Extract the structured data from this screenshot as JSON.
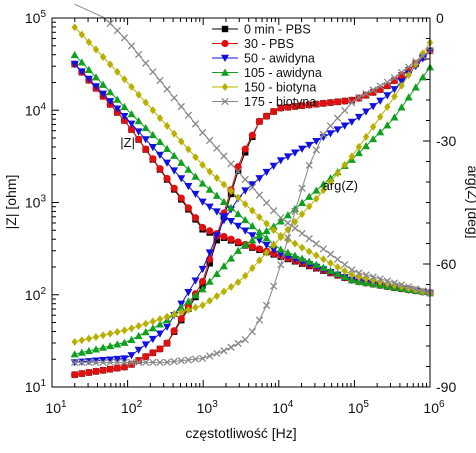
{
  "chart_data": {
    "type": "scatter",
    "xlabel": "częstotliwość [Hz]",
    "ylabel": "|Z| [ohm]",
    "y2label": "arg(Z) [deg]",
    "xscale": "log",
    "yscale": "log",
    "xlim": [
      10,
      1000000
    ],
    "ylim": [
      10,
      100000
    ],
    "y2lim": [
      -90,
      0
    ],
    "x_ticks": [
      {
        "v": 10,
        "base": "10",
        "exp": "1"
      },
      {
        "v": 100,
        "base": "10",
        "exp": "2"
      },
      {
        "v": 1000,
        "base": "10",
        "exp": "3"
      },
      {
        "v": 10000,
        "base": "10",
        "exp": "4"
      },
      {
        "v": 100000,
        "base": "10",
        "exp": "5"
      },
      {
        "v": 1000000,
        "base": "10",
        "exp": "6"
      }
    ],
    "y_ticks": [
      {
        "v": 10,
        "base": "10",
        "exp": "1"
      },
      {
        "v": 100,
        "base": "10",
        "exp": "2"
      },
      {
        "v": 1000,
        "base": "10",
        "exp": "3"
      },
      {
        "v": 10000,
        "base": "10",
        "exp": "4"
      },
      {
        "v": 100000,
        "base": "10",
        "exp": "5"
      }
    ],
    "y2_ticks": [
      "0",
      "-30",
      "-60",
      "-90"
    ],
    "annotations": [
      {
        "text": "|Z|",
        "x": 80,
        "y": 4000
      },
      {
        "text": "arg(Z)",
        "x": 38000,
        "y": -42
      }
    ],
    "legend": "top-center",
    "grid": false,
    "series": [
      {
        "name": "0 min - PBS",
        "color": "#000000",
        "marker": "square",
        "mag": {
          "logx": [
            1.3,
            2.0,
            3.0,
            3.5,
            4.0,
            5.0,
            5.5,
            6.0
          ],
          "logy": [
            4.5,
            3.85,
            2.7,
            2.55,
            2.42,
            2.15,
            2.08,
            2.02
          ]
        },
        "phase": {
          "logx": [
            1.3,
            2.0,
            2.5,
            3.0,
            3.25,
            3.5,
            3.75,
            4.0,
            4.5,
            5.0,
            5.4,
            5.7,
            6.0
          ],
          "deg": [
            -87,
            -85,
            -80,
            -65,
            -50,
            -35,
            -25,
            -22,
            -21,
            -20,
            -17,
            -13,
            -8
          ]
        }
      },
      {
        "name": "30 - PBS",
        "color": "#e01010",
        "marker": "circle",
        "mag": {
          "logx": [
            1.3,
            2.0,
            3.0,
            3.5,
            4.0,
            5.0,
            5.5,
            6.0
          ],
          "logy": [
            4.5,
            3.85,
            2.72,
            2.56,
            2.43,
            2.15,
            2.08,
            2.02
          ]
        },
        "phase": {
          "logx": [
            1.3,
            2.0,
            2.5,
            3.0,
            3.25,
            3.5,
            3.75,
            4.0,
            4.5,
            5.0,
            5.4,
            5.7,
            6.0
          ],
          "deg": [
            -87,
            -85,
            -80,
            -64,
            -49,
            -34,
            -25,
            -22,
            -21,
            -20,
            -17,
            -13,
            -8
          ]
        }
      },
      {
        "name": "50 - awidyna",
        "color": "#1010e0",
        "marker": "triangle-down",
        "mag": {
          "logx": [
            1.3,
            2.0,
            3.0,
            4.0,
            5.0,
            6.0
          ],
          "logy": [
            4.5,
            3.9,
            3.0,
            2.45,
            2.15,
            2.02
          ]
        },
        "phase": {
          "logx": [
            1.3,
            2.0,
            2.5,
            3.0,
            3.25,
            3.5,
            4.0,
            4.5,
            5.0,
            5.5,
            6.0
          ],
          "deg": [
            -84,
            -83,
            -76,
            -61,
            -50,
            -43,
            -35,
            -30,
            -25,
            -18,
            -8
          ]
        }
      },
      {
        "name": "105 - awidyna",
        "color": "#10a020",
        "marker": "triangle-up",
        "mag": {
          "logx": [
            1.3,
            2.0,
            3.0,
            4.0,
            5.0,
            6.0
          ],
          "logy": [
            4.6,
            4.0,
            3.2,
            2.5,
            2.15,
            2.02
          ]
        },
        "phase": {
          "logx": [
            1.3,
            2.0,
            2.5,
            3.0,
            3.5,
            4.0,
            4.5,
            5.0,
            5.5,
            6.0
          ],
          "deg": [
            -82,
            -79,
            -74,
            -66,
            -56,
            -50,
            -42,
            -34,
            -25,
            -12
          ]
        }
      },
      {
        "name": "150 - biotyna",
        "color": "#b8b000",
        "marker": "diamond",
        "mag": {
          "logx": [
            1.3,
            2.0,
            3.0,
            4.0,
            5.0,
            6.0
          ],
          "logy": [
            4.9,
            4.3,
            3.4,
            2.65,
            2.2,
            2.02
          ]
        },
        "phase": {
          "logx": [
            1.3,
            2.0,
            2.5,
            3.0,
            3.5,
            4.0,
            4.5,
            5.0,
            5.5,
            6.0
          ],
          "deg": [
            -79,
            -76,
            -73,
            -70,
            -64,
            -54,
            -44,
            -33,
            -20,
            -6
          ]
        }
      },
      {
        "name": "175 - biotyna",
        "color": "#888888",
        "marker": "x",
        "mag": {
          "logx": [
            1.3,
            1.7,
            2.0,
            3.0,
            4.0,
            5.0,
            6.0
          ],
          "logy": [
            5.15,
            5.0,
            4.75,
            3.75,
            2.85,
            2.25,
            2.02
          ]
        },
        "phase": {
          "logx": [
            1.3,
            2.0,
            2.5,
            3.0,
            3.3,
            3.6,
            3.8,
            4.0,
            4.2,
            4.4,
            4.6,
            5.0,
            5.5,
            6.0
          ],
          "deg": [
            -84,
            -84,
            -84,
            -83,
            -81,
            -78,
            -72,
            -62,
            -48,
            -36,
            -28,
            -20,
            -15,
            -8
          ]
        }
      }
    ]
  }
}
